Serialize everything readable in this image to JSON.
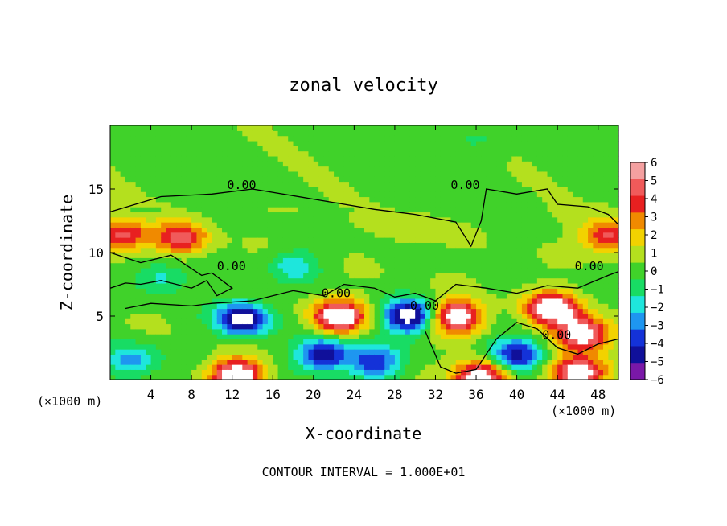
{
  "chart_data": {
    "type": "heatmap",
    "title": "zonal velocity",
    "xlabel": "X-coordinate",
    "ylabel": "Z-coordinate",
    "x_unit": "(×1000 m)",
    "x_unit_right": "(×1000 m)",
    "xlim": [
      0,
      50
    ],
    "ylim": [
      0,
      20
    ],
    "x_ticks": [
      4,
      8,
      12,
      16,
      20,
      24,
      28,
      32,
      36,
      40,
      44,
      48
    ],
    "x_tick_labels": [
      "4",
      "8",
      "12",
      "16",
      "20",
      "24",
      "28",
      "32",
      "36",
      "40",
      "44",
      "48"
    ],
    "y_ticks": [
      5,
      10,
      15
    ],
    "y_tick_labels": [
      "5",
      "10",
      "15"
    ],
    "footer": "CONTOUR INTERVAL = 1.000E+01",
    "contour_labels": [
      "0.00",
      "0.00",
      "0.00",
      "0.00",
      "0.00",
      "0.00",
      "0.00"
    ],
    "colorbar": {
      "levels": [
        6,
        5,
        4,
        3,
        2,
        1,
        0,
        -1,
        -2,
        -3,
        -4,
        -5,
        -6
      ],
      "labels": [
        "6",
        "5",
        "4",
        "3",
        "2",
        "1",
        "0",
        "−1",
        "−2",
        "−3",
        "−4",
        "−5",
        "−6"
      ],
      "colors": [
        "#f4a0a0",
        "#f05a5a",
        "#e82020",
        "#f08a00",
        "#f2d200",
        "#b4e01e",
        "#40d22a",
        "#18dc64",
        "#1ee6dc",
        "#1e96f0",
        "#1432d8",
        "#10109a",
        "#7a18a8"
      ]
    },
    "features": [
      {
        "x": 13.0,
        "z": 4.8,
        "value": -6
      },
      {
        "x": 12.5,
        "z": 0.4,
        "value": 6
      },
      {
        "x": 22.5,
        "z": 5.0,
        "value": 6
      },
      {
        "x": 29.5,
        "z": 5.0,
        "value": -6
      },
      {
        "x": 34.0,
        "z": 5.0,
        "value": 6
      },
      {
        "x": 36.5,
        "z": 0.3,
        "value": 6
      },
      {
        "x": 43.5,
        "z": 5.6,
        "value": 6
      },
      {
        "x": 46.5,
        "z": 3.6,
        "value": 6
      },
      {
        "x": 46.0,
        "z": 0.5,
        "value": 6
      },
      {
        "x": 7.0,
        "z": 11.2,
        "value": 4
      },
      {
        "x": 1.2,
        "z": 11.4,
        "value": 4
      },
      {
        "x": 49.0,
        "z": 11.4,
        "value": 4
      },
      {
        "x": 21.0,
        "z": 2.0,
        "value": -5
      },
      {
        "x": 26.0,
        "z": 1.4,
        "value": -4
      },
      {
        "x": 40.0,
        "z": 2.0,
        "value": -5
      },
      {
        "x": 2.0,
        "z": 1.5,
        "value": -3
      },
      {
        "x": 18.0,
        "z": 9.0,
        "value": -2
      },
      {
        "x": 5.0,
        "z": 8.0,
        "value": -2
      },
      {
        "x": 30.0,
        "z": 12.0,
        "value": 1
      },
      {
        "x": 36.0,
        "z": 19.0,
        "value": -1
      }
    ],
    "contours_zero": [
      [
        [
          0,
          13.2
        ],
        [
          5,
          14.4
        ],
        [
          10,
          14.6
        ],
        [
          14,
          15.0
        ],
        [
          20,
          14.2
        ],
        [
          26,
          13.4
        ],
        [
          30,
          13.0
        ],
        [
          34,
          12.4
        ],
        [
          35.5,
          10.5
        ],
        [
          36.5,
          12.5
        ],
        [
          37,
          15.0
        ],
        [
          40,
          14.6
        ],
        [
          43,
          15.0
        ],
        [
          44,
          13.8
        ],
        [
          47,
          13.6
        ],
        [
          49,
          13.0
        ],
        [
          50,
          12.2
        ]
      ],
      [
        [
          0,
          10.0
        ],
        [
          3,
          9.2
        ],
        [
          6,
          9.8
        ],
        [
          9,
          8.2
        ],
        [
          10,
          8.4
        ],
        [
          12,
          7.2
        ],
        [
          10.5,
          6.6
        ],
        [
          9.5,
          7.8
        ],
        [
          8,
          7.2
        ],
        [
          5,
          7.8
        ],
        [
          3,
          7.5
        ],
        [
          1.5,
          7.6
        ],
        [
          0,
          7.2
        ]
      ],
      [
        [
          1.5,
          5.6
        ],
        [
          4,
          6.0
        ],
        [
          8,
          5.8
        ],
        [
          10,
          6.0
        ],
        [
          14,
          6.2
        ],
        [
          18,
          7.0
        ],
        [
          21,
          6.6
        ],
        [
          23,
          7.5
        ],
        [
          26,
          7.2
        ],
        [
          28,
          6.5
        ],
        [
          30,
          6.8
        ],
        [
          32,
          6.2
        ],
        [
          34,
          7.5
        ],
        [
          37,
          7.2
        ],
        [
          40,
          6.8
        ],
        [
          43,
          7.4
        ],
        [
          46,
          7.2
        ],
        [
          49,
          8.2
        ],
        [
          50,
          8.5
        ]
      ],
      [
        [
          31,
          3.8
        ],
        [
          32.5,
          1.0
        ],
        [
          34,
          0.5
        ],
        [
          36,
          0.8
        ],
        [
          38,
          3.2
        ],
        [
          40,
          4.5
        ],
        [
          42,
          4.0
        ],
        [
          44,
          2.5
        ],
        [
          46,
          2.0
        ],
        [
          48,
          2.8
        ],
        [
          50,
          3.2
        ]
      ]
    ]
  }
}
